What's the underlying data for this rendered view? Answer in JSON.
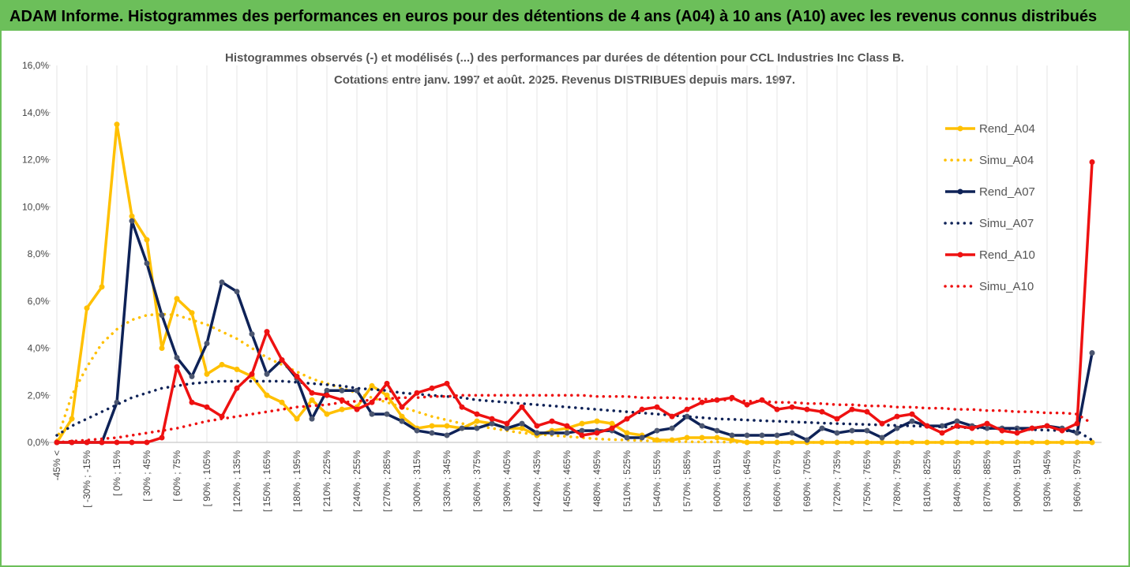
{
  "header": {
    "title": "ADAM Informe. Histogrammes des performances en euros pour des détentions de 4 ans (A04) à 10 ans (A10) avec les revenus connus distribués"
  },
  "chart_data": {
    "type": "line",
    "title": "Histogrammes observés (-) et modélisés (...) des performances par durées de détention pour CCL Industries Inc Class B.",
    "subtitle": "Cotations entre janv. 1997 et août. 2025. Revenus DISTRIBUES depuis mars. 1997.",
    "categories": [
      "-45% <",
      null,
      "[ -30% ; -15%",
      null,
      "[ 0% ; 15%",
      null,
      "[ 30% ; 45%",
      null,
      "[ 60% ; 75%",
      null,
      "[ 90% ; 105%",
      null,
      "[ 120% ; 135%",
      null,
      "[ 150% ; 165%",
      null,
      "[ 180% ; 195%",
      null,
      "[ 210% ; 225%",
      null,
      "[ 240% ; 255%",
      null,
      "[ 270% ; 285%",
      null,
      "[ 300% ; 315%",
      null,
      "[ 330% ; 345%",
      null,
      "[ 360% ; 375%",
      null,
      "[ 390% ; 405%",
      null,
      "[ 420% ; 435%",
      null,
      "[ 450% ; 465%",
      null,
      "[ 480% ; 495%",
      null,
      "[ 510% ; 525%",
      null,
      "[ 540% ; 555%",
      null,
      "[ 570% ; 585%",
      null,
      "[ 600% ; 615%",
      null,
      "[ 630% ; 645%",
      null,
      "[ 660% ; 675%",
      null,
      "[ 690% ; 705%",
      null,
      "[ 720% ; 735%",
      null,
      "[ 750% ; 765%",
      null,
      "[ 780% ; 795%",
      null,
      "[ 810% ; 825%",
      null,
      "[ 840% ; 855%",
      null,
      "[ 870% ; 885%",
      null,
      "[ 900% ; 915%",
      null,
      "[ 930% ; 945%",
      null,
      "[ 960% ; 975%",
      null
    ],
    "series": [
      {
        "name": "Rend_A04",
        "color": "#ffc000",
        "line_style": "solid",
        "marker": true,
        "values": [
          0,
          1.0,
          5.7,
          6.6,
          13.5,
          9.6,
          8.6,
          4.0,
          6.1,
          5.5,
          2.9,
          3.3,
          3.1,
          2.8,
          2.0,
          1.7,
          1.0,
          1.8,
          1.2,
          1.4,
          1.5,
          2.4,
          2.0,
          1.1,
          0.6,
          0.7,
          0.7,
          0.6,
          0.9,
          0.8,
          0.6,
          0.6,
          0.3,
          0.5,
          0.6,
          0.8,
          0.9,
          0.8,
          0.4,
          0.3,
          0.1,
          0.1,
          0.2,
          0.2,
          0.2,
          0.1,
          0,
          0,
          0,
          0,
          0,
          0,
          0,
          0,
          0,
          0,
          0,
          0,
          0,
          0,
          0,
          0,
          0,
          0,
          0,
          0,
          0,
          0,
          0,
          0
        ]
      },
      {
        "name": "Simu_A04",
        "color": "#ffc000",
        "line_style": "dotted",
        "marker": false,
        "values": [
          0.1,
          2.0,
          3.2,
          4.2,
          4.8,
          5.2,
          5.4,
          5.45,
          5.4,
          5.2,
          5.0,
          4.7,
          4.4,
          4.0,
          3.6,
          3.3,
          3.0,
          2.7,
          2.5,
          2.3,
          2.1,
          1.9,
          1.7,
          1.5,
          1.3,
          1.1,
          0.95,
          0.8,
          0.7,
          0.6,
          0.5,
          0.4,
          0.35,
          0.3,
          0.25,
          0.2,
          0.15,
          0.12,
          0.1,
          0.08,
          0.06,
          0.04,
          0.03,
          0.02,
          0.02,
          0.01,
          0,
          0,
          0,
          0,
          0,
          0,
          0,
          0,
          0,
          0,
          0,
          0,
          0,
          0,
          0,
          0,
          0,
          0,
          0,
          0,
          0,
          0,
          0,
          0
        ]
      },
      {
        "name": "Rend_A07",
        "color": "#0e2257",
        "line_style": "solid",
        "marker": true,
        "values": [
          0,
          0,
          0,
          0,
          1.7,
          9.4,
          7.6,
          5.4,
          3.6,
          2.8,
          4.2,
          6.8,
          6.4,
          4.6,
          2.9,
          3.5,
          2.7,
          1.0,
          2.2,
          2.2,
          2.2,
          1.2,
          1.2,
          0.9,
          0.5,
          0.4,
          0.3,
          0.6,
          0.6,
          0.8,
          0.6,
          0.8,
          0.4,
          0.4,
          0.4,
          0.5,
          0.5,
          0.5,
          0.2,
          0.2,
          0.5,
          0.6,
          1.1,
          0.7,
          0.5,
          0.3,
          0.3,
          0.3,
          0.3,
          0.4,
          0.1,
          0.6,
          0.4,
          0.5,
          0.5,
          0.2,
          0.6,
          0.9,
          0.7,
          0.7,
          0.9,
          0.7,
          0.6,
          0.6,
          0.6,
          0.6,
          0.7,
          0.6,
          0.4,
          3.8
        ]
      },
      {
        "name": "Simu_A07",
        "color": "#0e2257",
        "line_style": "dotted",
        "marker": false,
        "values": [
          0.3,
          0.7,
          1.0,
          1.3,
          1.6,
          1.9,
          2.1,
          2.3,
          2.4,
          2.5,
          2.55,
          2.6,
          2.6,
          2.6,
          2.6,
          2.6,
          2.55,
          2.5,
          2.45,
          2.4,
          2.3,
          2.25,
          2.2,
          2.1,
          2.05,
          2.0,
          1.95,
          1.9,
          1.8,
          1.75,
          1.7,
          1.65,
          1.6,
          1.55,
          1.5,
          1.45,
          1.4,
          1.35,
          1.3,
          1.25,
          1.2,
          1.15,
          1.1,
          1.05,
          1.0,
          0.98,
          0.95,
          0.92,
          0.9,
          0.87,
          0.85,
          0.82,
          0.8,
          0.78,
          0.76,
          0.74,
          0.72,
          0.7,
          0.68,
          0.66,
          0.64,
          0.62,
          0.6,
          0.58,
          0.56,
          0.54,
          0.52,
          0.5,
          0.48,
          0.1
        ]
      },
      {
        "name": "Rend_A10",
        "color": "#ee1111",
        "line_style": "solid",
        "marker": true,
        "values": [
          0,
          0,
          0,
          0,
          0,
          0,
          0,
          0.2,
          3.2,
          1.7,
          1.5,
          1.1,
          2.3,
          2.9,
          4.7,
          3.5,
          2.8,
          2.1,
          2.0,
          1.8,
          1.4,
          1.7,
          2.5,
          1.5,
          2.1,
          2.3,
          2.5,
          1.5,
          1.2,
          1.0,
          0.8,
          1.5,
          0.7,
          0.9,
          0.7,
          0.3,
          0.4,
          0.6,
          1.0,
          1.4,
          1.5,
          1.1,
          1.4,
          1.7,
          1.8,
          1.9,
          1.6,
          1.8,
          1.4,
          1.5,
          1.4,
          1.3,
          1.0,
          1.4,
          1.3,
          0.8,
          1.1,
          1.2,
          0.7,
          0.4,
          0.7,
          0.6,
          0.8,
          0.5,
          0.4,
          0.6,
          0.7,
          0.5,
          0.8,
          11.9
        ]
      },
      {
        "name": "Simu_A10",
        "color": "#ee1111",
        "line_style": "dotted",
        "marker": false,
        "values": [
          0,
          0.05,
          0.1,
          0.15,
          0.2,
          0.3,
          0.4,
          0.5,
          0.6,
          0.75,
          0.9,
          1.0,
          1.1,
          1.2,
          1.3,
          1.4,
          1.5,
          1.55,
          1.6,
          1.7,
          1.75,
          1.8,
          1.85,
          1.9,
          1.9,
          1.95,
          1.95,
          2.0,
          2.0,
          2.0,
          2.0,
          2.0,
          2.0,
          2.0,
          2.0,
          2.0,
          1.95,
          1.95,
          1.95,
          1.9,
          1.9,
          1.9,
          1.85,
          1.85,
          1.8,
          1.8,
          1.75,
          1.75,
          1.7,
          1.7,
          1.65,
          1.65,
          1.6,
          1.6,
          1.55,
          1.55,
          1.5,
          1.5,
          1.45,
          1.45,
          1.4,
          1.4,
          1.35,
          1.35,
          1.3,
          1.3,
          1.25,
          1.25,
          1.2,
          0.8
        ]
      }
    ],
    "ylim": [
      0,
      16
    ],
    "yticks": [
      {
        "value": 0,
        "label": "0,0%"
      },
      {
        "value": 2,
        "label": "2,0%"
      },
      {
        "value": 4,
        "label": "4,0%"
      },
      {
        "value": 6,
        "label": "6,0%"
      },
      {
        "value": 8,
        "label": "8,0%"
      },
      {
        "value": 10,
        "label": "10,0%"
      },
      {
        "value": 12,
        "label": "12,0%"
      },
      {
        "value": 14,
        "label": "14,0%"
      },
      {
        "value": 16,
        "label": "16,0%"
      }
    ],
    "legend": "right"
  }
}
